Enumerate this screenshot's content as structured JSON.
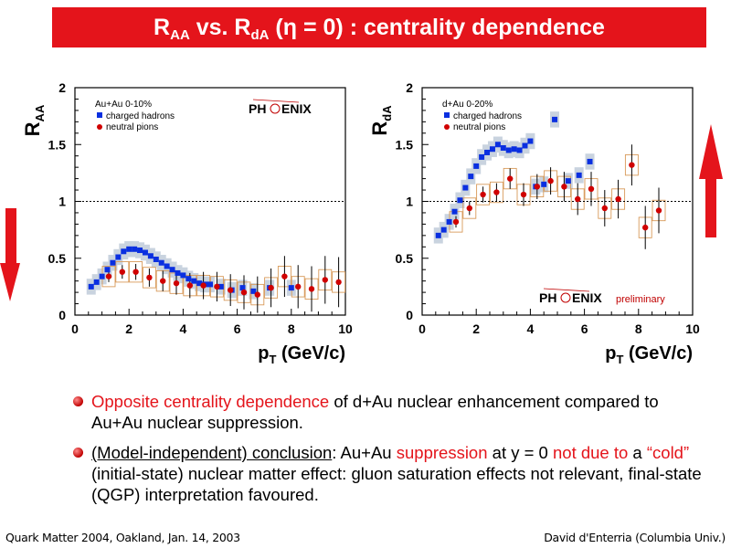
{
  "title": {
    "r1": "R",
    "s1": "AA",
    "mid": " vs. R",
    "s2": "dA",
    "tail": " (η = 0) : centrality dependence"
  },
  "colors": {
    "accent": "#e4141b",
    "hadron": "#0a2fe0",
    "pion": "#d00000",
    "band": "#c9d3df",
    "box": "#d89a5a"
  },
  "icons": {
    "left_arrow": "down-arrow-icon",
    "right_arrow": "up-arrow-icon",
    "bullet": "bullet-dot-icon"
  },
  "bullets": [
    {
      "p1_red": "Opposite centrality dependence",
      "p1": " of d+Au nuclear enhancement compared to Au+Au nuclear suppression."
    },
    {
      "p1_u": "(Model-independent) conclusion",
      "p1": ": Au+Au ",
      "p2_red": "suppression",
      "p2": " at y = 0 ",
      "p3_red": "not due to",
      "p3": " a ",
      "p4_red": "“cold”",
      "p4": " (initial-state) nuclear matter effect: gluon saturation effects not relevant, final-state (QGP) interpretation favoured."
    }
  ],
  "footer": {
    "left": "Quark Matter 2004, Oakland, Jan. 14, 2003",
    "right": "David d'Enterria (Columbia Univ.)"
  },
  "chart_data": [
    {
      "type": "scatter",
      "ylabel": "R_AA",
      "xlabel": "pT (GeV/c)",
      "xlim": [
        0,
        10
      ],
      "ylim": [
        0,
        2
      ],
      "xticks": [
        "0",
        "2",
        "4",
        "6",
        "8",
        "10"
      ],
      "yticks": [
        "0",
        "0.5",
        "1",
        "1.5",
        "2"
      ],
      "legend_title": "Au+Au 0-10%",
      "logo": "PHENIX",
      "reference_line": 1,
      "legend": "top-left",
      "series": [
        {
          "name": "charged hadrons",
          "x": [
            0.6,
            0.8,
            1.0,
            1.2,
            1.4,
            1.6,
            1.8,
            2.0,
            2.2,
            2.4,
            2.6,
            2.8,
            3.0,
            3.2,
            3.4,
            3.6,
            3.8,
            4.0,
            4.2,
            4.4,
            4.6,
            4.8,
            5.0,
            5.4,
            5.8,
            6.2,
            6.6,
            7.2,
            8.0
          ],
          "y": [
            0.25,
            0.29,
            0.34,
            0.4,
            0.46,
            0.51,
            0.56,
            0.58,
            0.58,
            0.57,
            0.55,
            0.52,
            0.49,
            0.46,
            0.43,
            0.4,
            0.37,
            0.35,
            0.32,
            0.3,
            0.28,
            0.27,
            0.27,
            0.25,
            0.22,
            0.24,
            0.21,
            0.24,
            0.24
          ]
        },
        {
          "name": "neutral pions",
          "x": [
            1.25,
            1.75,
            2.25,
            2.75,
            3.25,
            3.75,
            4.25,
            4.75,
            5.25,
            5.75,
            6.25,
            6.75,
            7.25,
            7.75,
            8.25,
            8.75,
            9.25,
            9.75
          ],
          "y": [
            0.34,
            0.38,
            0.38,
            0.33,
            0.3,
            0.28,
            0.26,
            0.26,
            0.25,
            0.22,
            0.2,
            0.18,
            0.24,
            0.34,
            0.25,
            0.23,
            0.31,
            0.29
          ]
        }
      ]
    },
    {
      "type": "scatter",
      "ylabel": "R_dA",
      "xlabel": "pT (GeV/c)",
      "xlim": [
        0,
        10
      ],
      "ylim": [
        0,
        2
      ],
      "xticks": [
        "0",
        "2",
        "4",
        "6",
        "8",
        "10"
      ],
      "yticks": [
        "0",
        "0.5",
        "1",
        "1.5",
        "2"
      ],
      "legend_title": "d+Au 0-20%",
      "logo": "PHENIX",
      "annotation": "preliminary",
      "reference_line": 1,
      "legend": "top-left",
      "series": [
        {
          "name": "charged hadrons",
          "x": [
            0.6,
            0.8,
            1.0,
            1.2,
            1.4,
            1.6,
            1.8,
            2.0,
            2.2,
            2.4,
            2.6,
            2.8,
            3.0,
            3.2,
            3.4,
            3.6,
            3.8,
            4.0,
            4.2,
            4.5,
            4.9,
            5.4,
            5.8,
            6.2
          ],
          "y": [
            0.7,
            0.75,
            0.82,
            0.91,
            1.01,
            1.12,
            1.22,
            1.31,
            1.39,
            1.43,
            1.46,
            1.5,
            1.47,
            1.45,
            1.46,
            1.45,
            1.49,
            1.53,
            1.13,
            1.15,
            1.72,
            1.18,
            1.23,
            1.35
          ]
        },
        {
          "name": "neutral pions",
          "x": [
            1.25,
            1.75,
            2.25,
            2.75,
            3.25,
            3.75,
            4.25,
            4.75,
            5.25,
            5.75,
            6.25,
            6.75,
            7.25,
            7.75,
            8.25,
            8.75
          ],
          "y": [
            0.82,
            0.94,
            1.06,
            1.08,
            1.2,
            1.06,
            1.13,
            1.18,
            1.13,
            1.02,
            1.11,
            0.94,
            1.02,
            1.32,
            0.77,
            0.92
          ]
        }
      ]
    }
  ]
}
